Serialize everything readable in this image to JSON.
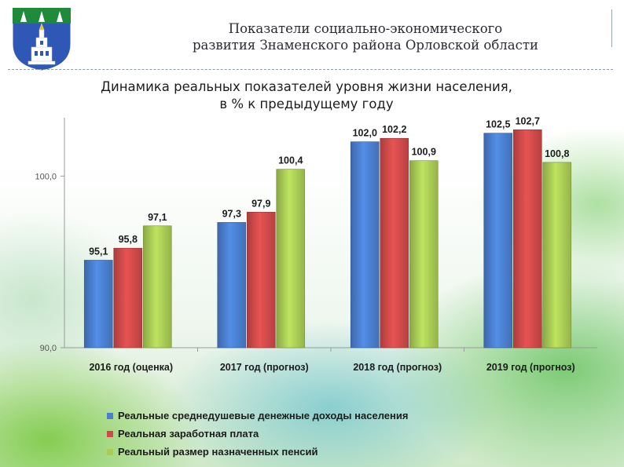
{
  "header": {
    "title_line1": "Показатели социально-экономического",
    "title_line2": "развития Знаменского района Орловской области"
  },
  "logo": {
    "icon": "coat-of-arms-icon",
    "colors": [
      "#1e8a3a",
      "#2f57b5",
      "#ffffff",
      "#f0c21a"
    ]
  },
  "chart_data": {
    "type": "bar",
    "title_line1": "Динамика реальных показателей уровня жизни населения,",
    "title_line2": "в % к предыдущему году",
    "categories": [
      "2016 год (оценка)",
      "2017 год (прогноз)",
      "2018 год (прогноз)",
      "2019 год (прогноз)"
    ],
    "series": [
      {
        "name": "Реальные среднедушевые денежные доходы населения",
        "color": "#4a7fcf",
        "values": [
          95.1,
          97.3,
          102.0,
          102.5
        ],
        "labels": [
          "95,1",
          "97,3",
          "102,0",
          "102,5"
        ]
      },
      {
        "name": "Реальная заработная плата",
        "color": "#cf4a4a",
        "values": [
          95.8,
          97.9,
          102.2,
          102.7
        ],
        "labels": [
          "95,8",
          "97,9",
          "102,2",
          "102,7"
        ]
      },
      {
        "name": "Реальный размер назначенных пенсий",
        "color": "#a9cc55",
        "values": [
          97.1,
          100.4,
          100.9,
          100.8
        ],
        "labels": [
          "97,1",
          "100,4",
          "100,9",
          "100,8"
        ]
      }
    ],
    "yticks": [
      90,
      100
    ],
    "ytick_labels": [
      "90,0",
      "100,0"
    ],
    "ylim": [
      90,
      103.4
    ],
    "grid": false,
    "legend_position": "bottom"
  }
}
